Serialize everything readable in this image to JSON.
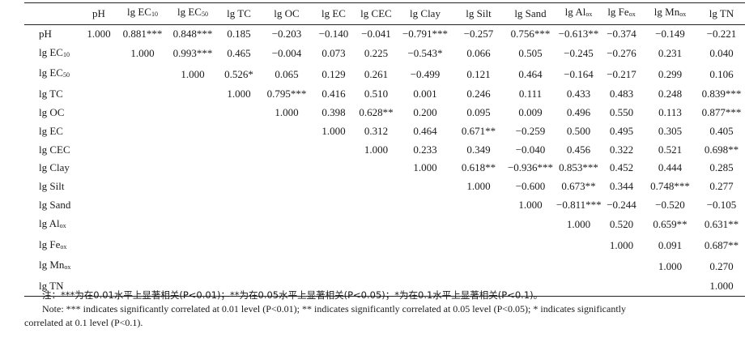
{
  "table": {
    "columns": [
      {
        "base": "pH",
        "sub": ""
      },
      {
        "base": "lg EC",
        "sub": "10"
      },
      {
        "base": "lg EC",
        "sub": "50"
      },
      {
        "base": "lg TC",
        "sub": ""
      },
      {
        "base": "lg OC",
        "sub": ""
      },
      {
        "base": "lg EC",
        "sub": ""
      },
      {
        "base": "lg CEC",
        "sub": ""
      },
      {
        "base": "lg Clay",
        "sub": ""
      },
      {
        "base": "lg Silt",
        "sub": ""
      },
      {
        "base": "lg Sand",
        "sub": ""
      },
      {
        "base": "lg Al",
        "sub": "ox"
      },
      {
        "base": "lg Fe",
        "sub": "ox"
      },
      {
        "base": "lg Mn",
        "sub": "ox"
      },
      {
        "base": "lg TN",
        "sub": ""
      }
    ],
    "rows": [
      {
        "label": {
          "base": "pH",
          "sub": ""
        },
        "values": [
          "1.000",
          "0.881***",
          "0.848***",
          "0.185",
          "−0.203",
          "−0.140",
          "−0.041",
          "−0.791***",
          "−0.257",
          "0.756***",
          "−0.613**",
          "−0.374",
          "−0.149",
          "−0.221"
        ]
      },
      {
        "label": {
          "base": "lg EC",
          "sub": "10"
        },
        "values": [
          "",
          "1.000",
          "0.993***",
          "0.465",
          "−0.004",
          "0.073",
          "0.225",
          "−0.543*",
          "0.066",
          "0.505",
          "−0.245",
          "−0.276",
          "0.231",
          "0.040"
        ]
      },
      {
        "label": {
          "base": "lg EC",
          "sub": "50"
        },
        "values": [
          "",
          "",
          "1.000",
          "0.526*",
          "0.065",
          "0.129",
          "0.261",
          "−0.499",
          "0.121",
          "0.464",
          "−0.164",
          "−0.217",
          "0.299",
          "0.106"
        ]
      },
      {
        "label": {
          "base": "lg TC",
          "sub": ""
        },
        "values": [
          "",
          "",
          "",
          "1.000",
          "0.795***",
          "0.416",
          "0.510",
          "0.001",
          "0.246",
          "0.111",
          "0.433",
          "0.483",
          "0.248",
          "0.839***"
        ]
      },
      {
        "label": {
          "base": "lg OC",
          "sub": ""
        },
        "values": [
          "",
          "",
          "",
          "",
          "1.000",
          "0.398",
          "0.628**",
          "0.200",
          "0.095",
          "0.009",
          "0.496",
          "0.550",
          "0.113",
          "0.877***"
        ]
      },
      {
        "label": {
          "base": "lg EC",
          "sub": ""
        },
        "values": [
          "",
          "",
          "",
          "",
          "",
          "1.000",
          "0.312",
          "0.464",
          "0.671**",
          "−0.259",
          "0.500",
          "0.495",
          "0.305",
          "0.405"
        ]
      },
      {
        "label": {
          "base": "lg CEC",
          "sub": ""
        },
        "values": [
          "",
          "",
          "",
          "",
          "",
          "",
          "1.000",
          "0.233",
          "0.349",
          "−0.040",
          "0.456",
          "0.322",
          "0.521",
          "0.698**"
        ]
      },
      {
        "label": {
          "base": "lg Clay",
          "sub": ""
        },
        "values": [
          "",
          "",
          "",
          "",
          "",
          "",
          "",
          "1.000",
          "0.618**",
          "−0.936***",
          "0.853***",
          "0.452",
          "0.444",
          "0.285"
        ]
      },
      {
        "label": {
          "base": "lg Silt",
          "sub": ""
        },
        "values": [
          "",
          "",
          "",
          "",
          "",
          "",
          "",
          "",
          "1.000",
          "−0.600",
          "0.673**",
          "0.344",
          "0.748***",
          "0.277"
        ]
      },
      {
        "label": {
          "base": "lg Sand",
          "sub": ""
        },
        "values": [
          "",
          "",
          "",
          "",
          "",
          "",
          "",
          "",
          "",
          "1.000",
          "−0.811***",
          "−0.244",
          "−0.520",
          "−0.105"
        ]
      },
      {
        "label": {
          "base": "lg Al",
          "sub": "ox"
        },
        "values": [
          "",
          "",
          "",
          "",
          "",
          "",
          "",
          "",
          "",
          "",
          "1.000",
          "0.520",
          "0.659**",
          "0.631**"
        ]
      },
      {
        "label": {
          "base": "lg Fe",
          "sub": "ox"
        },
        "values": [
          "",
          "",
          "",
          "",
          "",
          "",
          "",
          "",
          "",
          "",
          "",
          "1.000",
          "0.091",
          "0.687**"
        ]
      },
      {
        "label": {
          "base": "lg Mn",
          "sub": "ox"
        },
        "values": [
          "",
          "",
          "",
          "",
          "",
          "",
          "",
          "",
          "",
          "",
          "",
          "",
          "1.000",
          "0.270"
        ]
      },
      {
        "label": {
          "base": "lg TN",
          "sub": ""
        },
        "values": [
          "",
          "",
          "",
          "",
          "",
          "",
          "",
          "",
          "",
          "",
          "",
          "",
          "",
          "1.000"
        ]
      }
    ]
  },
  "notes": {
    "zh": "注：***为在0.01水平上显著相关(P<0.01)；**为在0.05水平上显著相关(P<0.05)；*为在0.1水平上显著相关(P<0.1)。",
    "en_line1": "Note: *** indicates significantly correlated at 0.01 level (P<0.01); ** indicates significantly correlated at 0.05 level (P<0.05); * indicates significantly",
    "en_line2": "correlated at 0.1 level (P<0.1)."
  }
}
